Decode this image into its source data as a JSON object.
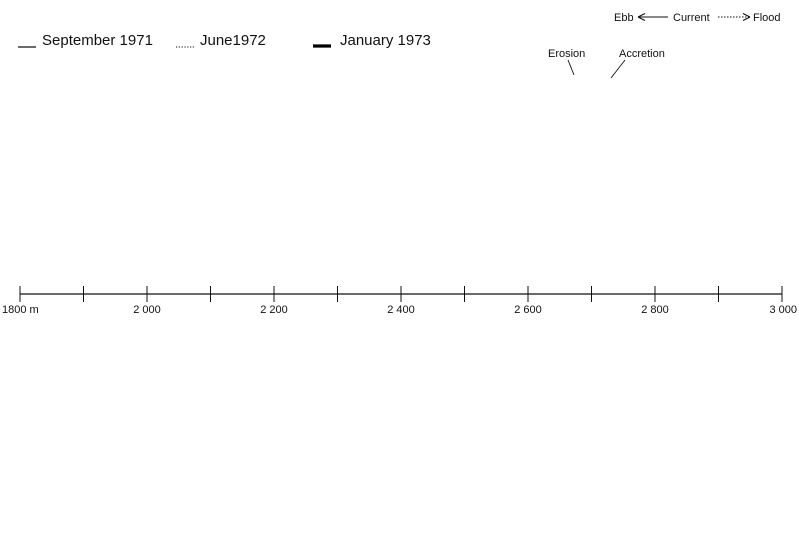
{
  "legend": {
    "items": [
      {
        "label": "September 1971",
        "style": "thin-solid"
      },
      {
        "label": "June1972",
        "style": "dotted"
      },
      {
        "label": "January 1973",
        "style": "thick-solid"
      }
    ]
  },
  "direction_key": {
    "ebb": "Ebb",
    "current": "Current",
    "flood": "Flood"
  },
  "annotations": {
    "erosion": "Erosion",
    "accretion": "Accretion"
  },
  "axis": {
    "first_label": "1800 m",
    "labels": [
      "2 000",
      "2 200",
      "2 400",
      "2 600",
      "2 800",
      "3 000"
    ]
  },
  "colors": {
    "ink": "#111111",
    "fill": "#000000",
    "background": "#ffffff"
  }
}
